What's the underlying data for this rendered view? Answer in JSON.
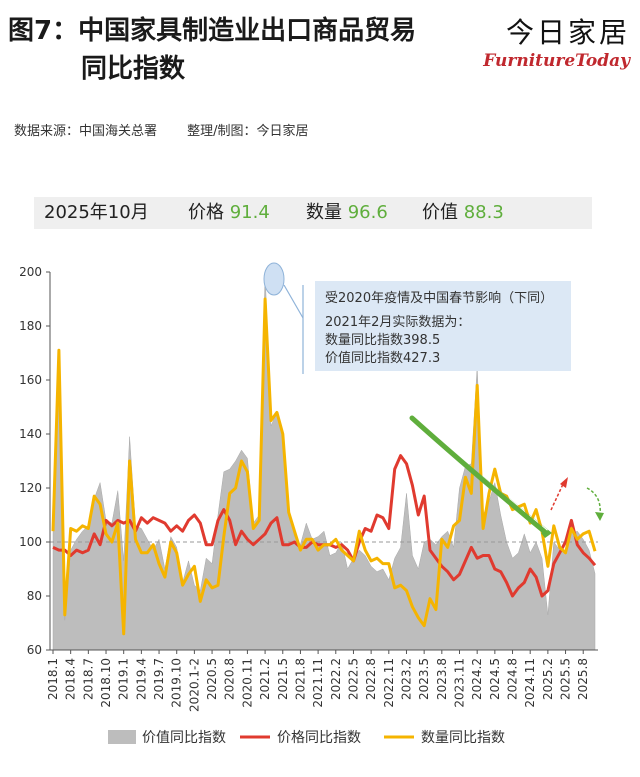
{
  "header": {
    "title_line1": "图7：中国家具制造业出口商品贸易",
    "title_line2": "同比指数",
    "brand_cn": "今日家居",
    "brand_en": "FurnitureToday"
  },
  "source": {
    "data_source": "数据来源：中国海关总署",
    "made_by": "整理/制图：今日家居"
  },
  "info_bar": {
    "date": "2025年10月",
    "price_label": "价格",
    "price_value": "91.4",
    "quantity_label": "数量",
    "quantity_value": "96.6",
    "value_label": "价值",
    "value_value": "88.3",
    "value_color": "#5fae3c"
  },
  "annotation": {
    "line1": "受2020年疫情及中国春节影响（下同）",
    "line2": "2021年2月实际数据为：",
    "line3": "数量同比指数398.5",
    "line4": "价值同比指数427.3"
  },
  "colors": {
    "value_area": "#bdbdbd",
    "price_line": "#e03a2f",
    "quantity_line": "#f5b400",
    "green_arrow": "#5fae3c",
    "red_arrow": "#e03a2f"
  },
  "chart_data": {
    "type": "area",
    "ylim": [
      60,
      200
    ],
    "yticks": [
      60,
      80,
      100,
      120,
      140,
      160,
      180,
      200
    ],
    "reference_line": 100,
    "x_tick_labels": [
      "2018.1",
      "2018.4",
      "2018.7",
      "2018.10",
      "2019.1",
      "2019.4",
      "2019.7",
      "2019.10",
      "2020.1-2",
      "2020.5",
      "2020.8",
      "2020.11",
      "2021.2",
      "2021.5",
      "2021.8",
      "2021.11",
      "2022.2",
      "2022.5",
      "2022.8",
      "2022.11",
      "2023.2",
      "2023.5",
      "2023.8",
      "2023.11",
      "2024.2",
      "2024.5",
      "2024.8",
      "2024.11",
      "2025.2",
      "2025.5",
      "2025.8"
    ],
    "x": [
      "2018.1",
      "2018.2",
      "2018.3",
      "2018.4",
      "2018.5",
      "2018.6",
      "2018.7",
      "2018.8",
      "2018.9",
      "2018.10",
      "2018.11",
      "2018.12",
      "2019.1",
      "2019.2",
      "2019.3",
      "2019.4",
      "2019.5",
      "2019.6",
      "2019.7",
      "2019.8",
      "2019.9",
      "2019.10",
      "2019.11",
      "2019.12",
      "2020.1-2",
      "2020.3",
      "2020.4",
      "2020.5",
      "2020.6",
      "2020.7",
      "2020.8",
      "2020.9",
      "2020.10",
      "2020.11",
      "2020.12",
      "2021.1",
      "2021.2",
      "2021.3",
      "2021.4",
      "2021.5",
      "2021.6",
      "2021.7",
      "2021.8",
      "2021.9",
      "2021.10",
      "2021.11",
      "2021.12",
      "2022.1",
      "2022.2",
      "2022.3",
      "2022.4",
      "2022.5",
      "2022.6",
      "2022.7",
      "2022.8",
      "2022.9",
      "2022.10",
      "2022.11",
      "2022.12",
      "2023.1",
      "2023.2",
      "2023.3",
      "2023.4",
      "2023.5",
      "2023.6",
      "2023.7",
      "2023.8",
      "2023.9",
      "2023.10",
      "2023.11",
      "2023.12",
      "2024.1",
      "2024.2",
      "2024.3",
      "2024.4",
      "2024.5",
      "2024.6",
      "2024.7",
      "2024.8",
      "2024.9",
      "2024.10",
      "2024.11",
      "2024.12",
      "2025.1",
      "2025.2",
      "2025.3",
      "2025.4",
      "2025.5",
      "2025.6",
      "2025.7",
      "2025.8",
      "2025.9",
      "2025.10"
    ],
    "series": [
      {
        "name": "价值同比指数",
        "kind": "area",
        "values": [
          103,
          168,
          71,
          97,
          101,
          104,
          106,
          116,
          122,
          108,
          107,
          119,
          93,
          139,
          106,
          105,
          101,
          97,
          101,
          90,
          102,
          98,
          85,
          93,
          84,
          82,
          94,
          92,
          110,
          126,
          127,
          130,
          134,
          131,
          107,
          110,
          200,
          143,
          148,
          141,
          112,
          102,
          99,
          107,
          101,
          102,
          104,
          95,
          96,
          100,
          90,
          94,
          97,
          95,
          91,
          89,
          90,
          86,
          94,
          98,
          118,
          95,
          90,
          100,
          101,
          99,
          102,
          104,
          98,
          120,
          128,
          129,
          165,
          110,
          115,
          122,
          110,
          100,
          94,
          96,
          103,
          96,
          100,
          94,
          73,
          100,
          97,
          96,
          103,
          104,
          101,
          97,
          88.3
        ]
      },
      {
        "name": "价格同比指数",
        "kind": "line",
        "values": [
          98,
          97,
          97,
          95,
          97,
          96,
          97,
          103,
          99,
          108,
          106,
          108,
          107,
          108,
          104,
          109,
          107,
          109,
          108,
          107,
          104,
          106,
          104,
          108,
          110,
          107,
          99,
          99,
          108,
          112,
          108,
          99,
          104,
          101,
          99,
          101,
          103,
          107,
          109,
          99,
          99,
          100,
          98,
          98,
          100,
          99,
          99,
          99,
          98,
          99,
          97,
          93,
          100,
          105,
          104,
          110,
          109,
          105,
          127,
          132,
          129,
          121,
          110,
          117,
          97,
          94,
          91,
          89,
          86,
          88,
          93,
          98,
          94,
          95,
          95,
          90,
          89,
          85,
          80,
          83,
          85,
          90,
          87,
          80,
          82,
          92,
          96,
          100,
          108,
          99,
          96,
          94,
          91.4
        ]
      },
      {
        "name": "数量同比指数",
        "kind": "line",
        "values": [
          104,
          171,
          73,
          105,
          104,
          106,
          105,
          117,
          114,
          103,
          100,
          107,
          66,
          130,
          101,
          96,
          96,
          99,
          92,
          87,
          100,
          96,
          84,
          88,
          91,
          78,
          86,
          83,
          84,
          102,
          118,
          120,
          130,
          126,
          105,
          108,
          190,
          145,
          148,
          140,
          111,
          104,
          97,
          101,
          101,
          97,
          99,
          99,
          101,
          97,
          95,
          93,
          104,
          97,
          93,
          94,
          92,
          92,
          83,
          84,
          82,
          76,
          72,
          69,
          79,
          75,
          101,
          98,
          106,
          108,
          124,
          118,
          158,
          105,
          118,
          127,
          118,
          117,
          112,
          113,
          114,
          107,
          112,
          104,
          91,
          106,
          98,
          96,
          105,
          101,
          103,
          104,
          96.6
        ]
      }
    ]
  },
  "legend": {
    "value": "价值同比指数",
    "price": "价格同比指数",
    "quantity": "数量同比指数"
  }
}
